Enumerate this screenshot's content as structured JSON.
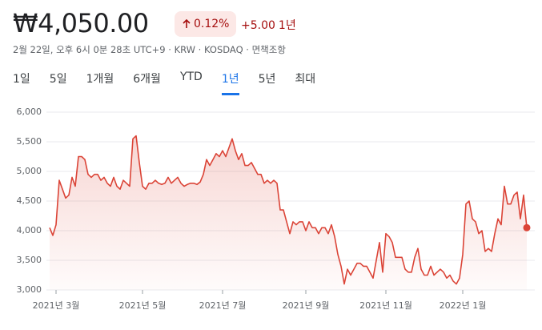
{
  "header": {
    "price": "₩4,050.00",
    "change_percent": "0.12%",
    "change": "+5.00",
    "change_period": "1년",
    "info": "2월 22일, 오후 6시 0분 28초 UTC+9 · KRW · KOSDAQ · 면책조항"
  },
  "range_tabs": {
    "labels": [
      "1일",
      "5일",
      "1개월",
      "6개월",
      "YTD",
      "1년",
      "5년",
      "최대"
    ],
    "selected": 5
  },
  "chart_data": {
    "type": "line",
    "color": "#db4437",
    "grid": true,
    "area": true,
    "end_marker": true,
    "ylim": [
      3000,
      6000
    ],
    "yticks": [
      {
        "value": 3000,
        "label": "3,000"
      },
      {
        "value": 3500,
        "label": "3,500"
      },
      {
        "value": 4000,
        "label": "4,000"
      },
      {
        "value": 4500,
        "label": "4,500"
      },
      {
        "value": 5000,
        "label": "5,000"
      },
      {
        "value": 5500,
        "label": "5,500"
      },
      {
        "value": 6000,
        "label": "6,000"
      }
    ],
    "categories": [
      null,
      null,
      "2021년 3월",
      null,
      null,
      null,
      null,
      null,
      null,
      null,
      null,
      null,
      null,
      null,
      null,
      null,
      null,
      null,
      null,
      null,
      null,
      null,
      null,
      null,
      null,
      null,
      null,
      null,
      null,
      "2021년 5월",
      null,
      null,
      null,
      null,
      null,
      null,
      null,
      null,
      null,
      null,
      null,
      null,
      null,
      null,
      null,
      null,
      null,
      null,
      null,
      null,
      null,
      null,
      null,
      null,
      "2021년 7월",
      null,
      null,
      null,
      null,
      null,
      null,
      null,
      null,
      null,
      null,
      null,
      null,
      null,
      null,
      null,
      null,
      null,
      null,
      null,
      null,
      null,
      null,
      null,
      null,
      null,
      "2021년 9월",
      null,
      null,
      null,
      null,
      null,
      null,
      null,
      null,
      null,
      null,
      null,
      null,
      null,
      null,
      null,
      null,
      null,
      null,
      null,
      null,
      null,
      null,
      null,
      null,
      "2021년 11월",
      null,
      null,
      null,
      null,
      null,
      null,
      null,
      null,
      null,
      null,
      null,
      null,
      null,
      null,
      null,
      null,
      null,
      null,
      null,
      null,
      null,
      null,
      null,
      "2022년 1월",
      null,
      null,
      null,
      null,
      null,
      null,
      null,
      null,
      null,
      null,
      null,
      null,
      null,
      null,
      null,
      null,
      null,
      null,
      null,
      null
    ],
    "values": [
      4050,
      3920,
      4100,
      4850,
      4700,
      4550,
      4600,
      4900,
      4750,
      5250,
      5250,
      5200,
      4950,
      4900,
      4950,
      4950,
      4850,
      4900,
      4800,
      4750,
      4900,
      4750,
      4700,
      4850,
      4800,
      4750,
      5550,
      5600,
      5150,
      4750,
      4700,
      4800,
      4800,
      4850,
      4800,
      4780,
      4800,
      4900,
      4800,
      4850,
      4900,
      4800,
      4750,
      4780,
      4800,
      4800,
      4780,
      4820,
      4950,
      5200,
      5100,
      5200,
      5300,
      5250,
      5350,
      5250,
      5400,
      5550,
      5350,
      5200,
      5300,
      5100,
      5100,
      5150,
      5050,
      4950,
      4950,
      4800,
      4850,
      4800,
      4850,
      4800,
      4350,
      4350,
      4150,
      3950,
      4150,
      4100,
      4150,
      4150,
      4000,
      4150,
      4050,
      4050,
      3950,
      4050,
      4050,
      3950,
      4100,
      3900,
      3600,
      3400,
      3100,
      3350,
      3250,
      3350,
      3450,
      3450,
      3400,
      3400,
      3300,
      3200,
      3500,
      3800,
      3300,
      3950,
      3900,
      3800,
      3550,
      3550,
      3550,
      3350,
      3300,
      3300,
      3550,
      3700,
      3350,
      3250,
      3250,
      3400,
      3250,
      3300,
      3350,
      3300,
      3200,
      3250,
      3150,
      3100,
      3200,
      3600,
      4450,
      4500,
      4200,
      4150,
      3950,
      4000,
      3650,
      3700,
      3650,
      3950,
      4200,
      4100,
      4750,
      4450,
      4450,
      4600,
      4650,
      4200,
      4600,
      4050
    ]
  }
}
